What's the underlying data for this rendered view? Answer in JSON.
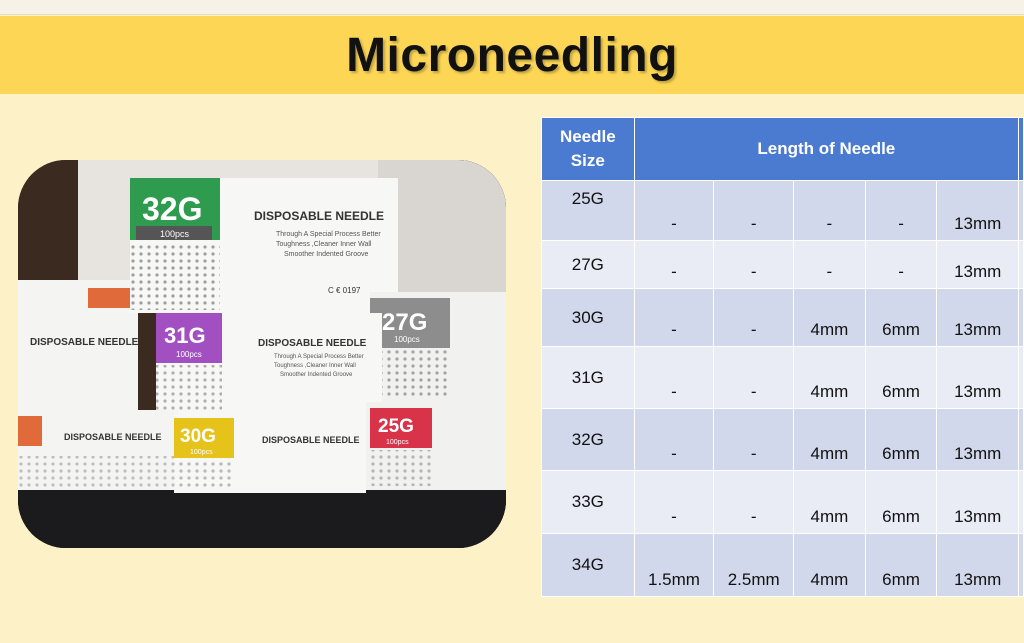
{
  "title": "Microneedling",
  "photo": {
    "boxes": [
      {
        "gauge": "32G",
        "count": "100pcs",
        "color": "#2e9b4e"
      },
      {
        "gauge": "31G",
        "count": "100pcs",
        "color": "#a24fc2"
      },
      {
        "gauge": "27G",
        "count": "100pcs",
        "color": "#8d8d8d"
      },
      {
        "gauge": "30G",
        "count": "100pcs",
        "color": "#e6c31a"
      },
      {
        "gauge": "25G",
        "count": "100pcs",
        "color": "#d9334a"
      }
    ],
    "label": "DISPOSABLE NEEDLE",
    "desc1": "Through A Special Process Better",
    "desc2": "Toughness ,Cleaner Inner Wall",
    "desc3": "Smoother Indented Groove",
    "mark": "C € 0197"
  },
  "table": {
    "header_size_line1": "Needle",
    "header_size_line2": "Size",
    "header_length": "Length of Needle",
    "rows": [
      {
        "size": "25G",
        "lengths": [
          "-",
          "-",
          "-",
          "-",
          "13mm"
        ]
      },
      {
        "size": "27G",
        "lengths": [
          "-",
          "-",
          "-",
          "-",
          "13mm"
        ]
      },
      {
        "size": "30G",
        "lengths": [
          "-",
          "-",
          "4mm",
          "6mm",
          "13mm"
        ]
      },
      {
        "size": "31G",
        "lengths": [
          "-",
          "-",
          "4mm",
          "6mm",
          "13mm"
        ]
      },
      {
        "size": "32G",
        "lengths": [
          "-",
          "-",
          "4mm",
          "6mm",
          "13mm"
        ]
      },
      {
        "size": "33G",
        "lengths": [
          "-",
          "-",
          "4mm",
          "6mm",
          "13mm"
        ]
      },
      {
        "size": "34G",
        "lengths": [
          "1.5mm",
          "2.5mm",
          "4mm",
          "6mm",
          "13mm"
        ]
      }
    ]
  },
  "colors": {
    "title_band": "#fdd656",
    "header": "#4a7bd0",
    "row_dark": "#d2d8eb",
    "row_light": "#e9ecf5",
    "background": "#fdf1c8"
  }
}
